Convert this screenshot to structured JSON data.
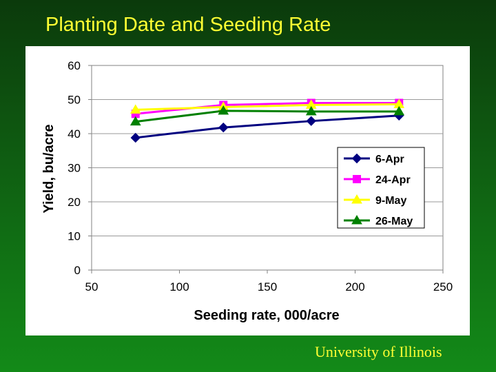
{
  "slide": {
    "title": "Planting Date and Seeding Rate",
    "footer": "University of Illinois"
  },
  "chart_data": {
    "type": "line",
    "title": "",
    "xlabel": "Seeding rate, 000/acre",
    "ylabel": "Yield, bu/acre",
    "xlim": [
      50,
      250
    ],
    "ylim": [
      0,
      60
    ],
    "xticks": [
      50,
      100,
      150,
      200,
      250
    ],
    "yticks": [
      0,
      10,
      20,
      30,
      40,
      50,
      60
    ],
    "x": [
      75,
      125,
      175,
      225
    ],
    "grid": "horizontal",
    "legend_position": "right-middle",
    "series": [
      {
        "name": "6-Apr",
        "values": [
          38.8,
          41.8,
          43.7,
          45.3
        ],
        "color": "#000080",
        "marker": "diamond"
      },
      {
        "name": "24-Apr",
        "values": [
          45.8,
          48.4,
          49.0,
          49.0
        ],
        "color": "#ff00ff",
        "marker": "square"
      },
      {
        "name": "9-May",
        "values": [
          47.0,
          47.8,
          48.4,
          48.6
        ],
        "color": "#ffff00",
        "marker": "triangle"
      },
      {
        "name": "26-May",
        "values": [
          43.5,
          46.7,
          46.5,
          46.5
        ],
        "color": "#008000",
        "marker": "triangle"
      }
    ]
  }
}
